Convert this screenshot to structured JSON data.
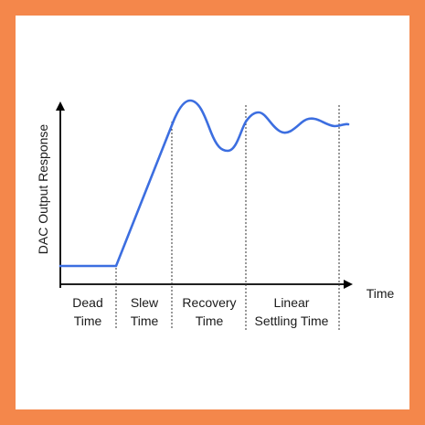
{
  "colors": {
    "border": "#f4874b",
    "background": "#ffffff",
    "curve": "#3c6ee0",
    "axis": "#000000",
    "divider": "#333333"
  },
  "diagram": {
    "ylabel": "DAC Output Response",
    "xlabel": "Time",
    "phases": [
      {
        "line1": "Dead",
        "line2": "Time"
      },
      {
        "line1": "Slew",
        "line2": "Time"
      },
      {
        "line1": "Recovery",
        "line2": "Time"
      },
      {
        "line1": "Linear",
        "line2": "Settling Time"
      }
    ]
  }
}
